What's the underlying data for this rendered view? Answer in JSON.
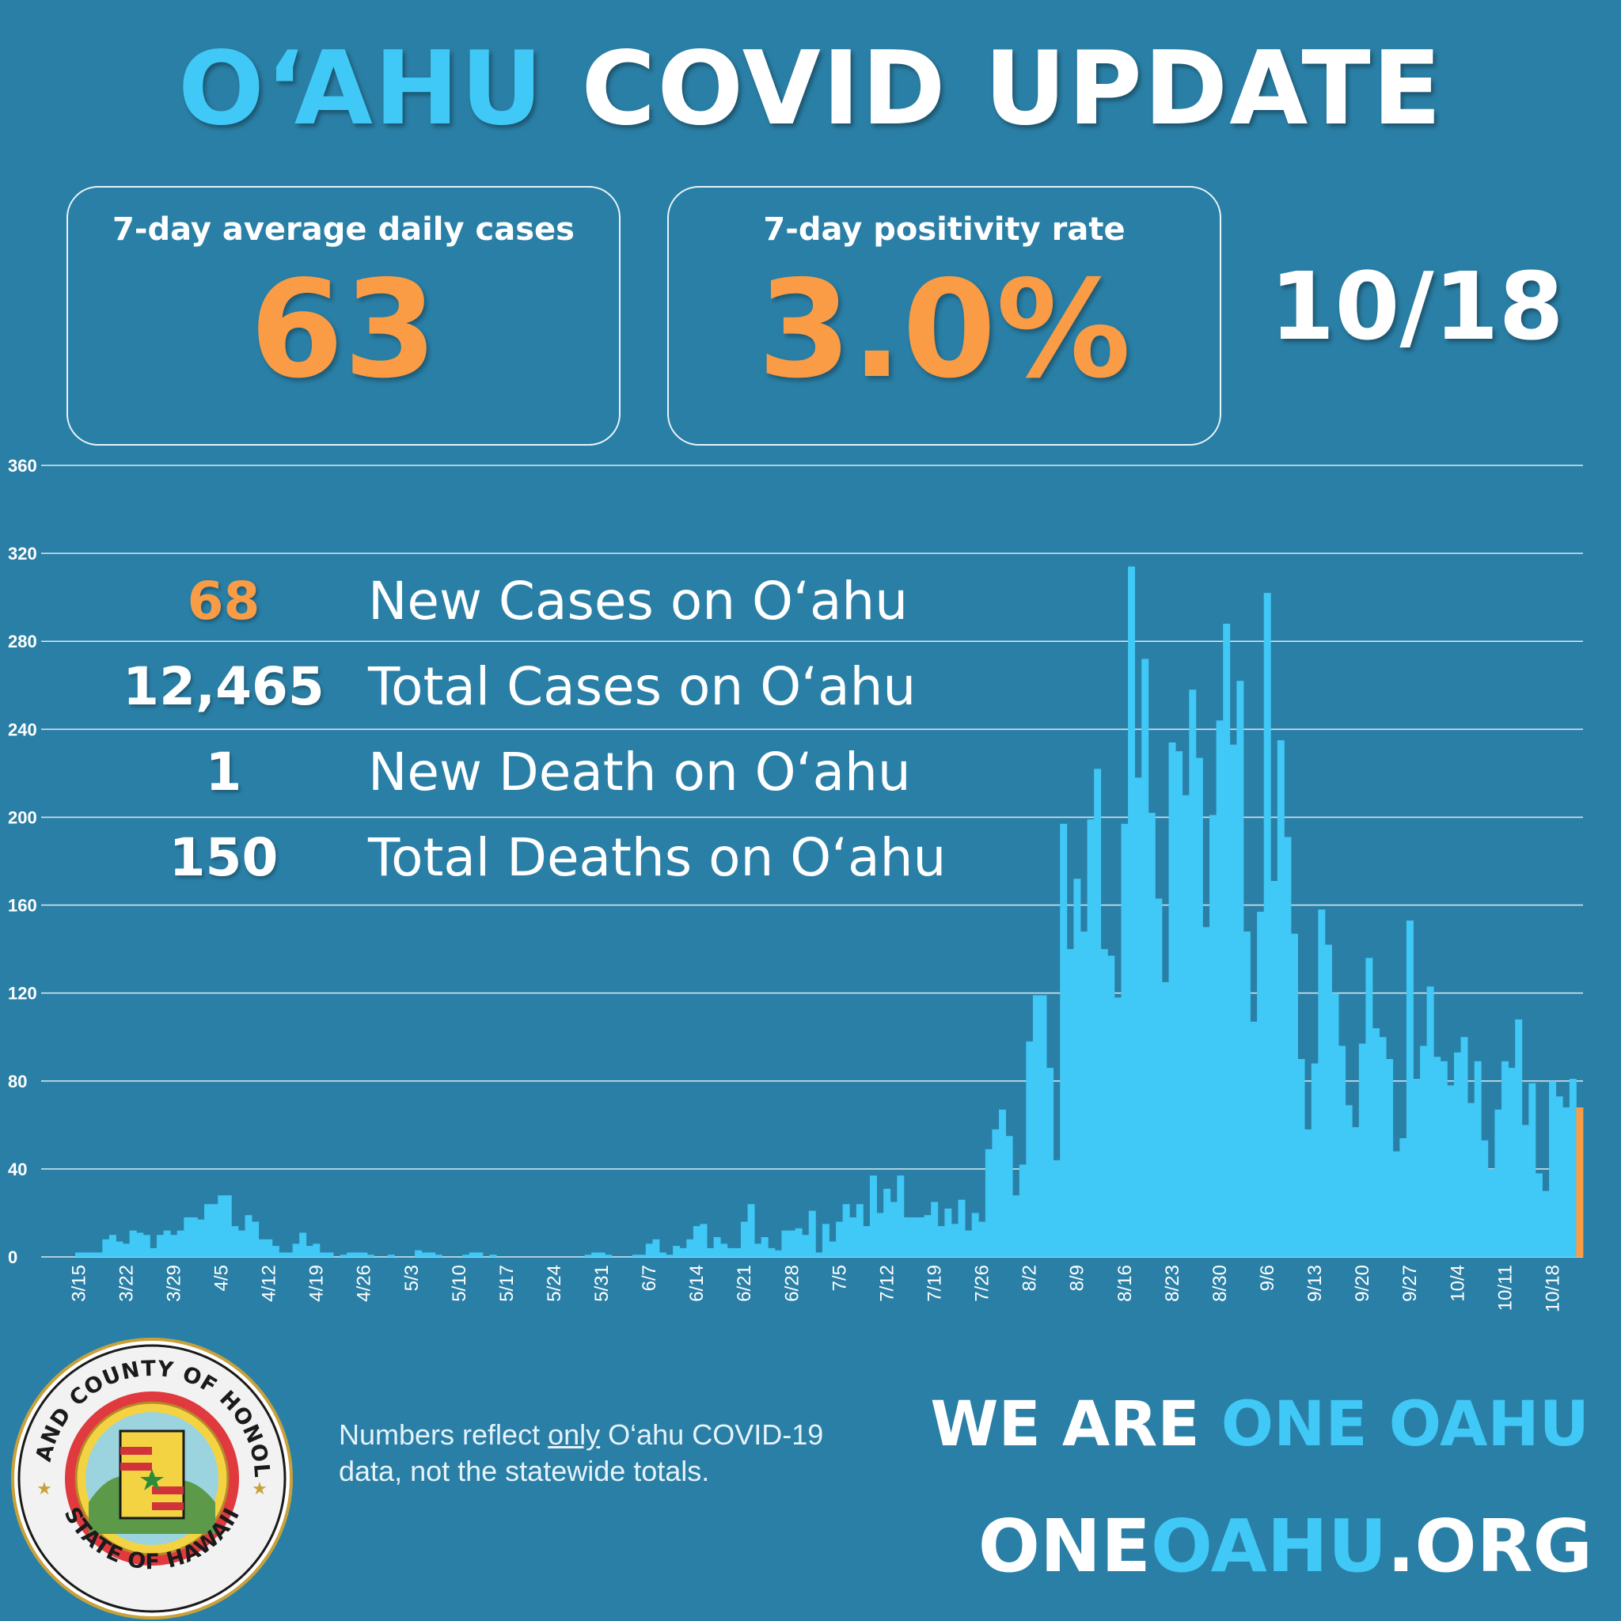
{
  "header": {
    "title_accent": "O‘AHU",
    "title_rest": " COVID UPDATE"
  },
  "stat_boxes": [
    {
      "label": "7-day average daily cases",
      "value": "63"
    },
    {
      "label": "7-day positivity rate",
      "value": "3.0%"
    }
  ],
  "date": "10/18",
  "stats": [
    {
      "value": "68",
      "label": "New Cases on O‘ahu",
      "highlight": true
    },
    {
      "value": "12,465",
      "label": "Total Cases on O‘ahu",
      "highlight": false
    },
    {
      "value": "1",
      "label": "New Death on O‘ahu",
      "highlight": false
    },
    {
      "value": "150",
      "label": "Total Deaths on O‘ahu",
      "highlight": false
    }
  ],
  "footnote": {
    "before": "Numbers reflect ",
    "underlined": "only",
    "after": " O‘ahu COVID-19 data, not the statewide totals."
  },
  "slogan": {
    "white": "WE ARE ",
    "accent": "ONE OAHU"
  },
  "website": {
    "part1": "ONE",
    "part2": "OAHU",
    "part3": ".ORG"
  },
  "seal": {
    "top_text": "CITY AND COUNTY OF HONOLULU",
    "bottom_text": "STATE OF HAWAII"
  },
  "chart_data": {
    "type": "bar",
    "title": "",
    "xlabel": "",
    "ylabel": "",
    "ylim": [
      0,
      360
    ],
    "yticks": [
      0,
      40,
      80,
      120,
      160,
      200,
      240,
      280,
      320,
      360
    ],
    "grid": true,
    "x_tick_labels": [
      "3/15",
      "3/22",
      "3/29",
      "4/5",
      "4/12",
      "4/19",
      "4/26",
      "5/3",
      "5/10",
      "5/17",
      "5/24",
      "5/31",
      "6/7",
      "6/14",
      "6/21",
      "6/28",
      "7/5",
      "7/12",
      "7/19",
      "7/26",
      "8/2",
      "8/9",
      "8/16",
      "8/23",
      "8/30",
      "9/6",
      "9/13",
      "9/20",
      "9/27",
      "10/4",
      "10/11",
      "10/18"
    ],
    "bar_color": "#40c8f6",
    "highlight_color": "#f99c45",
    "weekly_values": [
      [
        2,
        2,
        2,
        2,
        8,
        10,
        7
      ],
      [
        6,
        12,
        11,
        10,
        4,
        10,
        12
      ],
      [
        10,
        12,
        18,
        18,
        17,
        24,
        24
      ],
      [
        28,
        28,
        14,
        12,
        19,
        16,
        8
      ],
      [
        8,
        5,
        2,
        2,
        6,
        11,
        5
      ],
      [
        6,
        2,
        2,
        0,
        1,
        2,
        2
      ],
      [
        2,
        1,
        0,
        0,
        1,
        0,
        0
      ],
      [
        0,
        3,
        2,
        2,
        1,
        0,
        0
      ],
      [
        0,
        1,
        2,
        2,
        0,
        1,
        0
      ],
      [
        0,
        0,
        0,
        0,
        0,
        0,
        0
      ],
      [
        0,
        0,
        0,
        0,
        0,
        1,
        2
      ],
      [
        2,
        1,
        0,
        0,
        0,
        1,
        1
      ],
      [
        6,
        8,
        2,
        1,
        5,
        4,
        8
      ],
      [
        14,
        15,
        4,
        9,
        6,
        4,
        4
      ],
      [
        16,
        24,
        6,
        9,
        4,
        3,
        12
      ],
      [
        12,
        13,
        10,
        21,
        2,
        15,
        7
      ],
      [
        16,
        24,
        18,
        24,
        14,
        37,
        20
      ],
      [
        31,
        25,
        37,
        18,
        18,
        18,
        19
      ],
      [
        25,
        14,
        22,
        15,
        26,
        12,
        20
      ],
      [
        16,
        49,
        58,
        67,
        55,
        28,
        42
      ],
      [
        98,
        119,
        119,
        86,
        44,
        197,
        140
      ],
      [
        172,
        148,
        199,
        222,
        140,
        137,
        118
      ],
      [
        197,
        314,
        218,
        272,
        202,
        163,
        125
      ],
      [
        234,
        230,
        210,
        258,
        227,
        150,
        201
      ],
      [
        244,
        288,
        233,
        262,
        148,
        107,
        157
      ],
      [
        302,
        171,
        235,
        191,
        147,
        90,
        58
      ],
      [
        88,
        158,
        142,
        120,
        96,
        69,
        59
      ],
      [
        97,
        136,
        104,
        100,
        90,
        48,
        54
      ],
      [
        153,
        81,
        96,
        123,
        91,
        89,
        78
      ],
      [
        93,
        100,
        70,
        89,
        53,
        40,
        67
      ],
      [
        89,
        86,
        108,
        60,
        79,
        38,
        30
      ],
      [
        80,
        73,
        68,
        81,
        68
      ]
    ],
    "last_value_highlight": 68
  }
}
